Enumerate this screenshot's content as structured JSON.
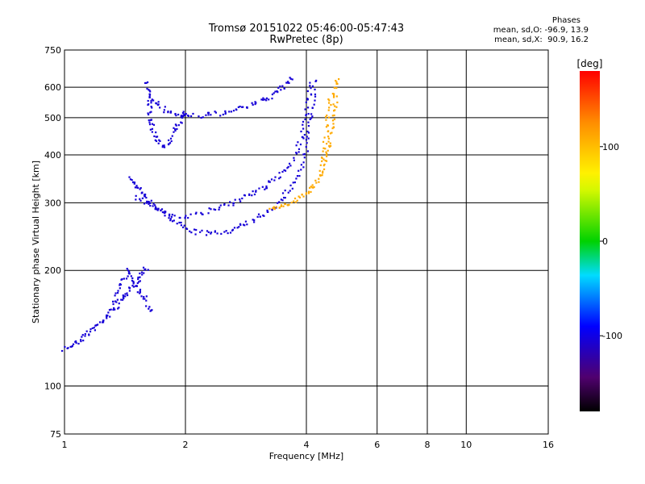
{
  "chart_data": {
    "type": "scatter",
    "title": "Tromsø 20151022 05:46:00-05:47:43",
    "subtitle": "RwPretec (8p)",
    "xlabel": "Frequency [MHz]",
    "ylabel": "Stationary phase Virtual Height [km]",
    "x_scale": "log",
    "y_scale": "log",
    "xlim": [
      1,
      16
    ],
    "ylim": [
      75,
      750
    ],
    "x_ticks": [
      1,
      2,
      4,
      6,
      8,
      10,
      16
    ],
    "y_ticks": [
      75,
      100,
      200,
      300,
      400,
      500,
      600,
      750
    ],
    "grid": true,
    "colorbar": {
      "label": "[deg]",
      "ticks": [
        -100,
        0,
        100
      ],
      "range": [
        -180,
        180
      ],
      "colormap": "rainbow"
    },
    "phase_stats": {
      "header": "Phases",
      "line_o": "mean, sd,O: -96.9, 13.9",
      "line_x": "mean, sd,X:  90.9, 16.2"
    },
    "traces": [
      {
        "name": "",
        "phase_deg": -105,
        "points": [
          [
            1.0,
            125
          ],
          [
            1.05,
            128
          ],
          [
            1.1,
            133
          ],
          [
            1.15,
            138
          ],
          [
            1.2,
            143
          ],
          [
            1.25,
            149
          ],
          [
            1.3,
            155
          ],
          [
            1.35,
            162
          ],
          [
            1.4,
            170
          ],
          [
            1.45,
            178
          ],
          [
            1.5,
            186
          ],
          [
            1.55,
            196
          ],
          [
            1.6,
            205
          ]
        ]
      },
      {
        "name": "",
        "phase_deg": -105,
        "points": [
          [
            1.3,
            160
          ],
          [
            1.35,
            175
          ],
          [
            1.4,
            190
          ],
          [
            1.45,
            200
          ],
          [
            1.5,
            185
          ],
          [
            1.55,
            175
          ],
          [
            1.6,
            165
          ],
          [
            1.65,
            155
          ]
        ]
      },
      {
        "name": "",
        "phase_deg": -105,
        "points": [
          [
            1.45,
            350
          ],
          [
            1.5,
            335
          ],
          [
            1.55,
            320
          ],
          [
            1.6,
            305
          ],
          [
            1.7,
            290
          ],
          [
            1.8,
            278
          ],
          [
            1.9,
            266
          ],
          [
            2.0,
            256
          ],
          [
            2.2,
            250
          ],
          [
            2.4,
            250
          ],
          [
            2.6,
            255
          ],
          [
            2.8,
            262
          ],
          [
            3.0,
            272
          ],
          [
            3.2,
            285
          ],
          [
            3.4,
            300
          ],
          [
            3.6,
            322
          ],
          [
            3.8,
            350
          ],
          [
            3.95,
            390
          ],
          [
            4.05,
            440
          ],
          [
            4.1,
            500
          ],
          [
            4.15,
            560
          ],
          [
            4.2,
            640
          ]
        ]
      },
      {
        "name": "",
        "phase_deg": -105,
        "points": [
          [
            1.5,
            310
          ],
          [
            1.6,
            300
          ],
          [
            1.7,
            290
          ],
          [
            1.8,
            282
          ],
          [
            2.0,
            275
          ],
          [
            2.2,
            282
          ],
          [
            2.4,
            290
          ],
          [
            2.6,
            300
          ],
          [
            2.8,
            310
          ],
          [
            3.0,
            320
          ],
          [
            3.2,
            333
          ],
          [
            3.4,
            350
          ],
          [
            3.6,
            375
          ],
          [
            3.8,
            410
          ],
          [
            3.9,
            450
          ],
          [
            4.0,
            500
          ],
          [
            4.05,
            560
          ],
          [
            4.1,
            620
          ]
        ]
      },
      {
        "name": "",
        "phase_deg": -105,
        "points": [
          [
            1.65,
            560
          ],
          [
            1.7,
            540
          ],
          [
            1.8,
            520
          ],
          [
            1.9,
            510
          ],
          [
            2.0,
            505
          ],
          [
            2.2,
            505
          ],
          [
            2.4,
            512
          ],
          [
            2.6,
            520
          ],
          [
            2.8,
            532
          ],
          [
            3.0,
            545
          ],
          [
            3.2,
            562
          ],
          [
            3.4,
            585
          ],
          [
            3.55,
            610
          ],
          [
            3.7,
            640
          ]
        ]
      },
      {
        "name": "",
        "phase_deg": -105,
        "points": [
          [
            1.6,
            620
          ],
          [
            1.62,
            580
          ],
          [
            1.63,
            540
          ],
          [
            1.64,
            500
          ],
          [
            1.65,
            470
          ],
          [
            1.7,
            440
          ],
          [
            1.75,
            420
          ],
          [
            1.85,
            440
          ],
          [
            1.9,
            470
          ],
          [
            1.95,
            500
          ],
          [
            2.0,
            520
          ]
        ]
      },
      {
        "name": "",
        "phase_deg": 110,
        "points": [
          [
            3.25,
            290
          ],
          [
            3.4,
            292
          ],
          [
            3.6,
            298
          ],
          [
            3.8,
            306
          ],
          [
            4.0,
            318
          ],
          [
            4.15,
            332
          ],
          [
            4.3,
            350
          ],
          [
            4.4,
            372
          ],
          [
            4.5,
            405
          ],
          [
            4.6,
            445
          ],
          [
            4.65,
            490
          ],
          [
            4.7,
            540
          ],
          [
            4.75,
            590
          ],
          [
            4.8,
            640
          ]
        ]
      },
      {
        "name": "",
        "phase_deg": 110,
        "points": [
          [
            4.4,
            380
          ],
          [
            4.45,
            420
          ],
          [
            4.5,
            470
          ],
          [
            4.55,
            520
          ],
          [
            4.6,
            580
          ]
        ]
      }
    ]
  }
}
